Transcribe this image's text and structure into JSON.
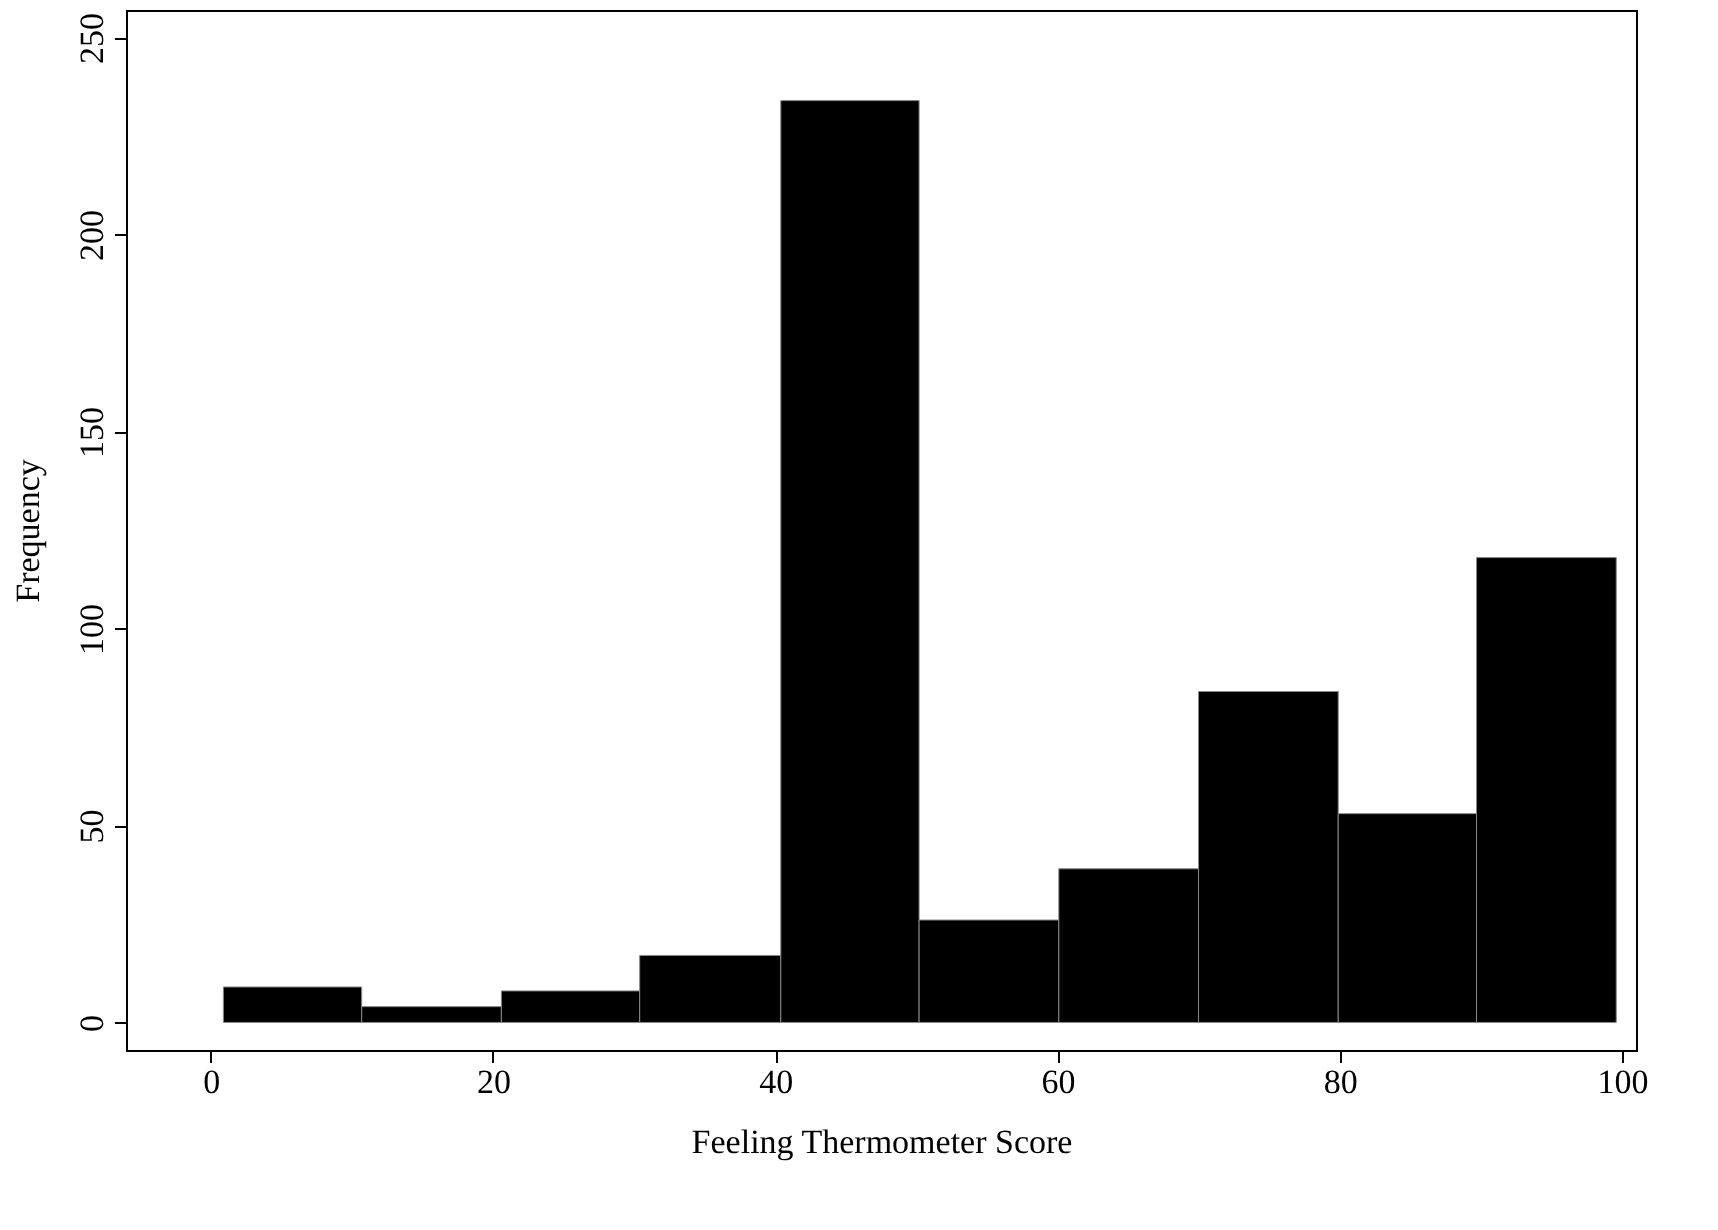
{
  "chart_data": {
    "type": "histogram",
    "xlabel": "Feeling Thermometer Score",
    "ylabel": "Frequency",
    "bins": [
      0.9,
      10.7,
      20.6,
      30.4,
      40.4,
      50.2,
      60.1,
      70,
      79.9,
      89.7,
      99.6
    ],
    "values": [
      9,
      4,
      8,
      17,
      234,
      26,
      39,
      84,
      53,
      118
    ],
    "color": "#000000",
    "xlim": [
      -6,
      101
    ],
    "xticks": [
      0,
      20,
      40,
      60,
      80,
      100
    ],
    "ylim": [
      -7,
      257
    ],
    "yticks": [
      0,
      50,
      100,
      150,
      200,
      250
    ],
    "grid": false
  }
}
